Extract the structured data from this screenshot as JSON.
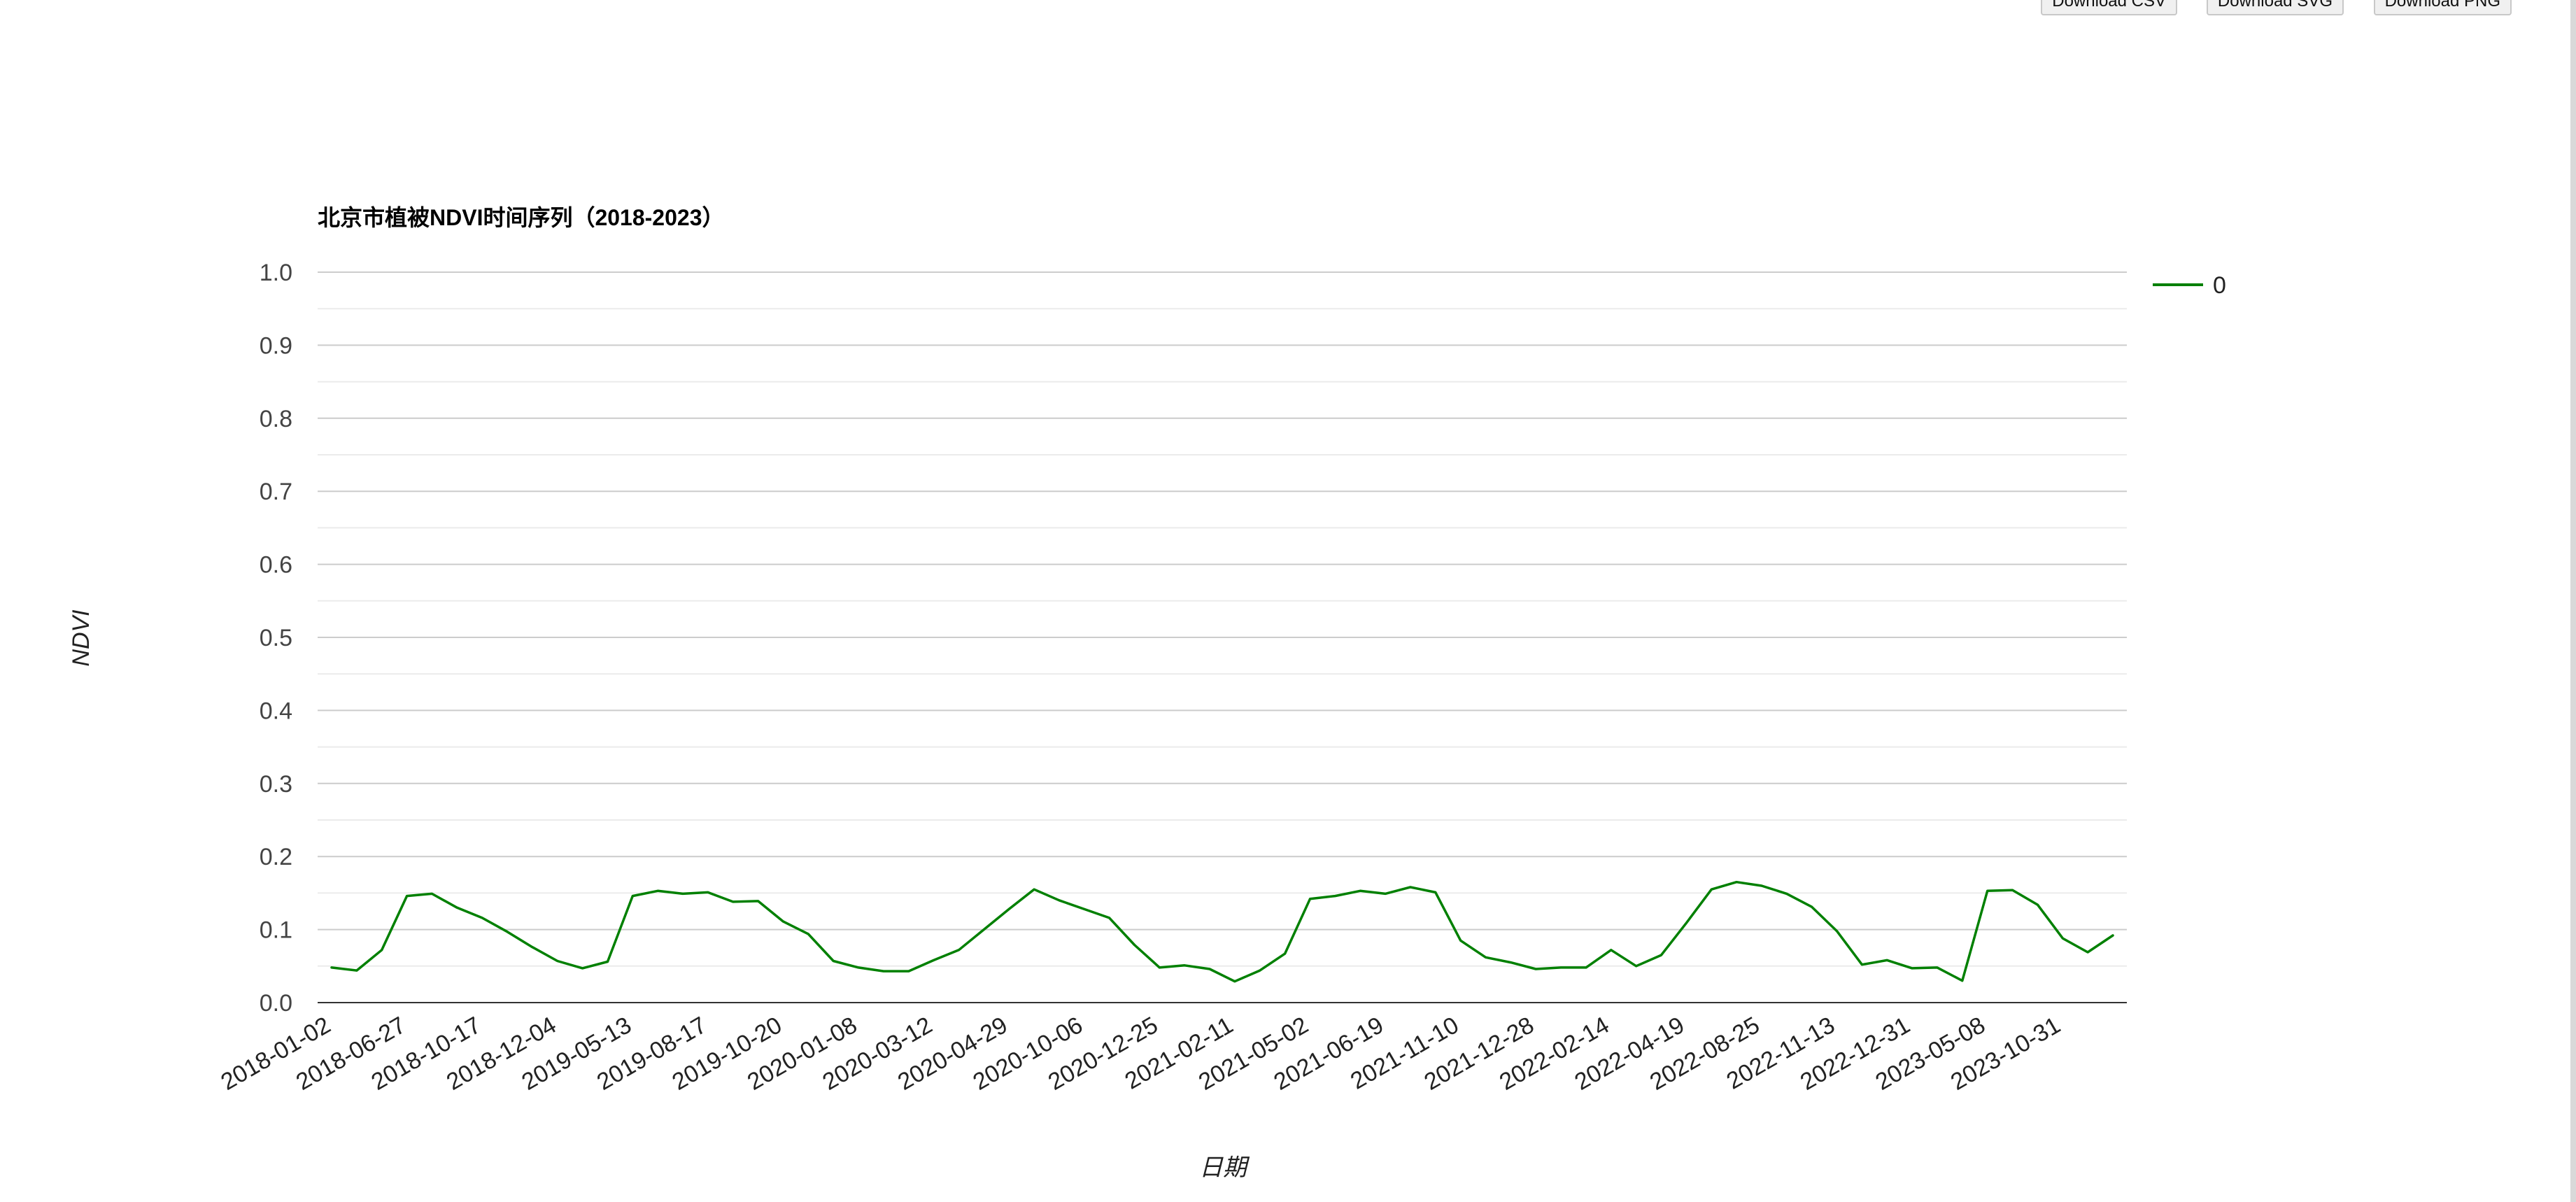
{
  "toolbar": {
    "download_csv": "Download CSV",
    "download_svg": "Download SVG",
    "download_png": "Download PNG"
  },
  "colors": {
    "series": "#008000",
    "grid_major": "#cccccc",
    "grid_minor": "#ebebeb",
    "axis": "#333333"
  },
  "chart_data": {
    "type": "line",
    "title": "北京市植被NDVI时间序列（2018-2023）",
    "xlabel": "日期",
    "ylabel": "NDVI",
    "ylim": [
      0,
      1
    ],
    "yticks": [
      "0.0",
      "0.1",
      "0.2",
      "0.3",
      "0.4",
      "0.5",
      "0.6",
      "0.7",
      "0.8",
      "0.9",
      "1.0"
    ],
    "grid": true,
    "legend_position": "right",
    "xticks": [
      "2018-01-02",
      "2018-06-27",
      "2018-10-17",
      "2018-12-04",
      "2019-05-13",
      "2019-08-17",
      "2019-10-20",
      "2020-01-08",
      "2020-03-12",
      "2020-04-29",
      "2020-10-06",
      "2020-12-25",
      "2021-02-11",
      "2021-05-02",
      "2021-06-19",
      "2021-11-10",
      "2021-12-28",
      "2022-02-14",
      "2022-04-19",
      "2022-08-25",
      "2022-11-13",
      "2022-12-31",
      "2023-05-08",
      "2023-10-31"
    ],
    "series": [
      {
        "name": "0",
        "values": [
          0.048,
          0.044,
          0.072,
          0.146,
          0.149,
          0.13,
          0.116,
          0.097,
          0.076,
          0.057,
          0.047,
          0.056,
          0.146,
          0.153,
          0.149,
          0.151,
          0.138,
          0.139,
          0.111,
          0.094,
          0.057,
          0.048,
          0.043,
          0.043,
          0.058,
          0.072,
          0.1,
          0.128,
          0.155,
          0.14,
          0.128,
          0.116,
          0.079,
          0.048,
          0.051,
          0.046,
          0.029,
          0.044,
          0.067,
          0.142,
          0.146,
          0.153,
          0.149,
          0.158,
          0.151,
          0.085,
          0.062,
          0.055,
          0.046,
          0.048,
          0.048,
          0.072,
          0.05,
          0.065,
          0.109,
          0.155,
          0.165,
          0.16,
          0.149,
          0.131,
          0.098,
          0.052,
          0.058,
          0.047,
          0.048,
          0.03,
          0.153,
          0.154,
          0.134,
          0.088,
          0.069,
          0.092
        ]
      }
    ]
  }
}
